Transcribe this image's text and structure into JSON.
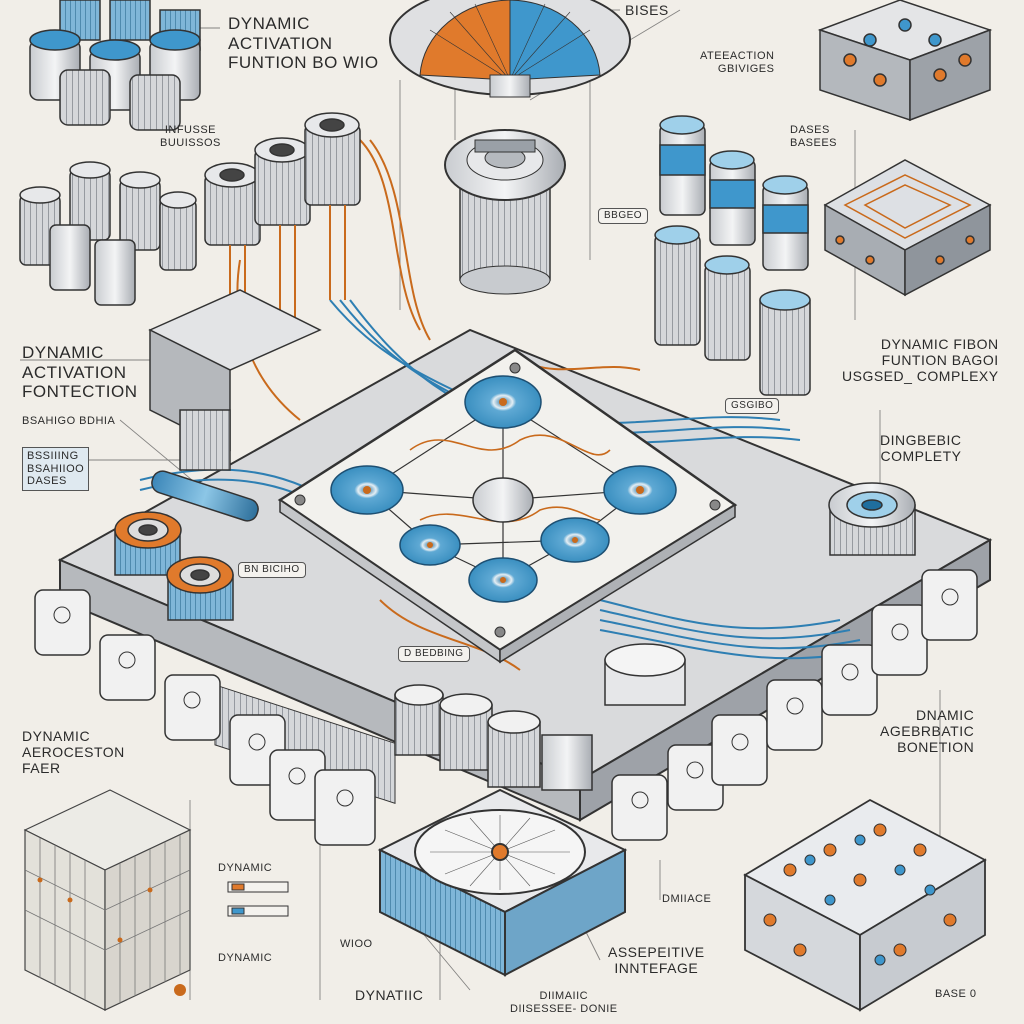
{
  "labels": {
    "top_left_title": [
      "DYNAMIC",
      "ACTIVATION",
      "FUNTION BO WIO"
    ],
    "top_center": "BISES",
    "top_left_small": [
      "INFUSSE",
      "BUUISSOS"
    ],
    "top_right_small": [
      "ATEEACTION",
      "GBIVIGES"
    ],
    "right_bases": [
      "DASES",
      "BASEES"
    ],
    "left_mid_title": [
      "DYNAMIC",
      "ACTIVATION",
      "FONTECTION"
    ],
    "left_mid_small": "BSAHIGO BDHIA",
    "left_mid_box": [
      "BSSIIING",
      "BSAHIIOO",
      "DASES"
    ],
    "right_mid_title": [
      "DYNAMIC FIBON",
      "FUNTION BAGOI",
      "USGSED_ COMPLEXY"
    ],
    "right_mid_small": [
      "DINGBEBIC",
      "COMPLETY"
    ],
    "tag_center_top": "BBGEO",
    "tag_center_right": "GSGIBO",
    "tag_left": "BN BICIHO",
    "tag_center_low": "D BEDBING",
    "left_low_title": [
      "DYNAMIC",
      "AEROCESTON",
      "FAER"
    ],
    "right_low_title": [
      "DNAMIC",
      "AGEBRBATIC",
      "BONETION"
    ],
    "bottom_left_1": "DYNAMIC",
    "bottom_left_2": "DYNAMIC",
    "bottom_left_3": "WIOO",
    "bottom_center_1": "DYNATIIC",
    "bottom_center_2": [
      "DIIMAIIC",
      "DIISESSEE- DONIE"
    ],
    "bottom_center_3": [
      "ASSEPEITIVE",
      "INNTEFAGE"
    ],
    "bottom_right_small": "DMIIACE",
    "bottom_right": "BASE 0"
  }
}
